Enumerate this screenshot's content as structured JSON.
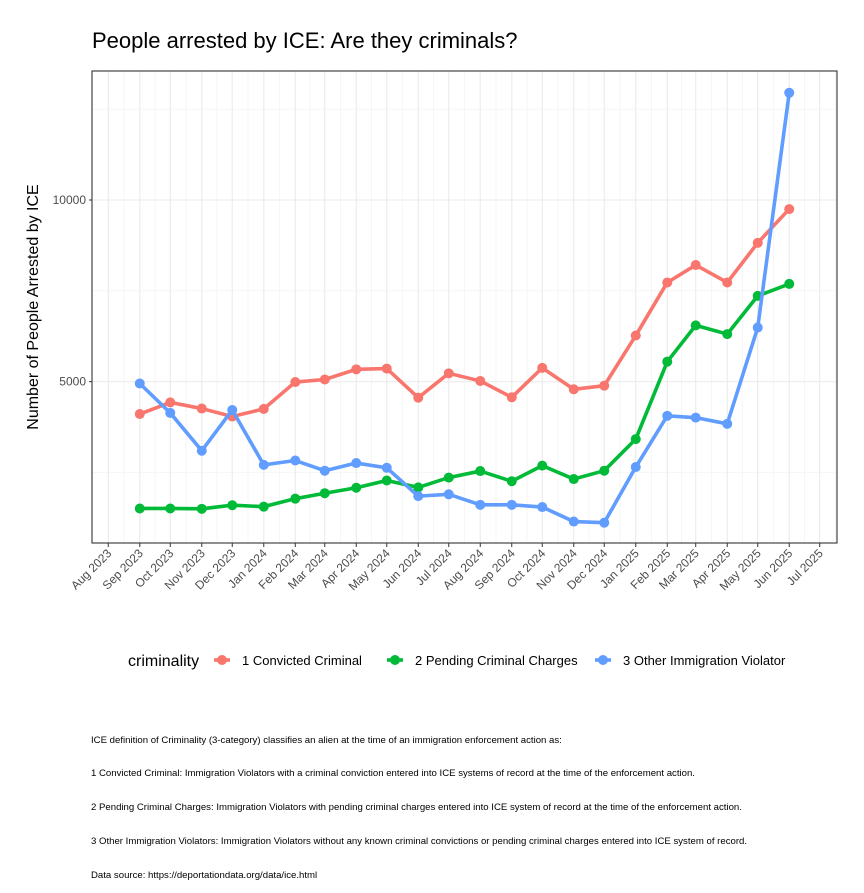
{
  "chart_data": {
    "type": "line",
    "title": "People arrested by ICE: Are they criminals?",
    "xlabel": "",
    "ylabel": "Number of People Arrested by ICE",
    "x": [
      "2023-09-01",
      "2023-10-01",
      "2023-11-01",
      "2023-12-01",
      "2024-01-01",
      "2024-02-01",
      "2024-03-01",
      "2024-04-01",
      "2024-05-01",
      "2024-06-01",
      "2024-07-01",
      "2024-08-01",
      "2024-09-01",
      "2024-10-01",
      "2024-11-01",
      "2024-12-01",
      "2025-01-01",
      "2025-02-01",
      "2025-03-01",
      "2025-04-01",
      "2025-05-01",
      "2025-06-01"
    ],
    "xlim": [
      "2023-07-16",
      "2025-07-18"
    ],
    "x_ticks": [
      {
        "date": "2023-08-01",
        "label": "Aug 2023"
      },
      {
        "date": "2023-09-01",
        "label": "Sep 2023"
      },
      {
        "date": "2023-10-01",
        "label": "Oct 2023"
      },
      {
        "date": "2023-11-01",
        "label": "Nov 2023"
      },
      {
        "date": "2023-12-01",
        "label": "Dec 2023"
      },
      {
        "date": "2024-01-01",
        "label": "Jan 2024"
      },
      {
        "date": "2024-02-01",
        "label": "Feb 2024"
      },
      {
        "date": "2024-03-01",
        "label": "Mar 2024"
      },
      {
        "date": "2024-04-01",
        "label": "Apr 2024"
      },
      {
        "date": "2024-05-01",
        "label": "May 2024"
      },
      {
        "date": "2024-06-01",
        "label": "Jun 2024"
      },
      {
        "date": "2024-07-01",
        "label": "Jul 2024"
      },
      {
        "date": "2024-08-01",
        "label": "Aug 2024"
      },
      {
        "date": "2024-09-01",
        "label": "Sep 2024"
      },
      {
        "date": "2024-10-01",
        "label": "Oct 2024"
      },
      {
        "date": "2024-11-01",
        "label": "Nov 2024"
      },
      {
        "date": "2024-12-01",
        "label": "Dec 2024"
      },
      {
        "date": "2025-01-01",
        "label": "Jan 2025"
      },
      {
        "date": "2025-02-01",
        "label": "Feb 2025"
      },
      {
        "date": "2025-03-01",
        "label": "Mar 2025"
      },
      {
        "date": "2025-04-01",
        "label": "Apr 2025"
      },
      {
        "date": "2025-05-01",
        "label": "May 2025"
      },
      {
        "date": "2025-06-01",
        "label": "Jun 2025"
      },
      {
        "date": "2025-07-01",
        "label": "Jul 2025"
      }
    ],
    "ylim": [
      560,
      13550
    ],
    "y_ticks": [
      {
        "value": 5000,
        "label": "5000"
      },
      {
        "value": 10000,
        "label": "10000"
      }
    ],
    "y_minor_gridlines": [
      2500,
      7500,
      12500
    ],
    "grid": true,
    "legend": {
      "title": "criminality",
      "position": "bottom"
    },
    "series": [
      {
        "name": "1 Convicted Criminal",
        "color": "#F8766D",
        "values": [
          4110,
          4430,
          4260,
          4040,
          4250,
          4990,
          5060,
          5340,
          5360,
          4560,
          5230,
          5020,
          4570,
          5380,
          4790,
          4890,
          6270,
          7730,
          8210,
          7730,
          8820,
          9750
        ]
      },
      {
        "name": "2 Pending Criminal Charges",
        "color": "#00BA38",
        "values": [
          1510,
          1510,
          1500,
          1600,
          1560,
          1780,
          1930,
          2080,
          2280,
          2090,
          2360,
          2540,
          2260,
          2690,
          2320,
          2550,
          3420,
          5550,
          6550,
          6310,
          7360,
          7690
        ]
      },
      {
        "name": "3 Other Immigration Violator",
        "color": "#619CFF",
        "values": [
          4950,
          4140,
          3100,
          4220,
          2710,
          2830,
          2550,
          2760,
          2630,
          1850,
          1900,
          1610,
          1610,
          1550,
          1150,
          1120,
          2650,
          4060,
          4010,
          3840,
          6490,
          12950
        ]
      }
    ],
    "caption": [
      "ICE definition of Criminality (3-category) classifies an alien at the time of an immigration enforcement action as:",
      "1 Convicted Criminal: Immigration Violators with a criminal conviction entered into ICE systems of record at the time of the enforcement action.",
      "2 Pending Criminal Charges: Immigration Violators with pending criminal charges entered into ICE system of record at the time of the enforcement action.",
      "3 Other Immigration Violators: Immigration Violators without any known criminal convictions or pending criminal charges entered into ICE system of record.",
      "Data source: https://deportationdata.org/data/ice.html"
    ]
  }
}
